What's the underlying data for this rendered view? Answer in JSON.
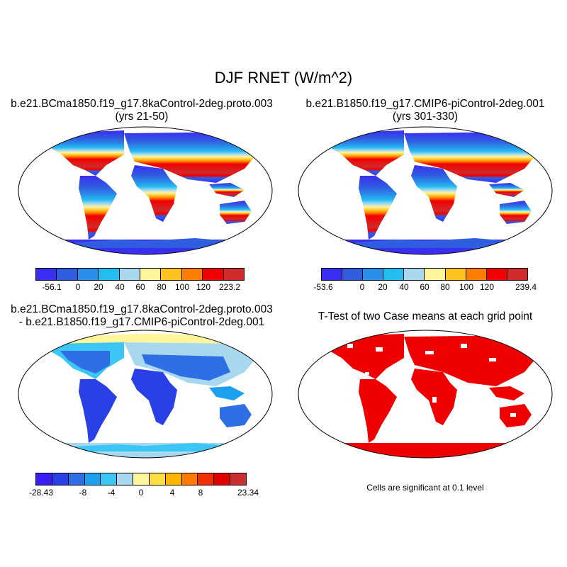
{
  "figure": {
    "title": "DJF RNET (W/m^2)"
  },
  "panels": [
    {
      "title_line1": "b.e21.BCma1850.f19_g17.8kaControl-2deg.proto.003",
      "title_line2": "(yrs 21-50)",
      "colorbar": {
        "labels": [
          "-56.1",
          "0",
          "20",
          "40",
          "60",
          "80",
          "100",
          "120",
          "223.2"
        ],
        "colors": [
          "#3a2ef0",
          "#2f5de0",
          "#2a8fea",
          "#23bdf2",
          "#a7d8f0",
          "#fff59b",
          "#ffc21e",
          "#ff7d00",
          "#f20000",
          "#d02a2a"
        ]
      }
    },
    {
      "title_line1": "b.e21.B1850.f19_g17.CMIP6-piControl-2deg.001",
      "title_line2": "(yrs 301-330)",
      "colorbar": {
        "labels": [
          "-53.6",
          "0",
          "20",
          "40",
          "60",
          "80",
          "100",
          "120",
          "239.4"
        ],
        "colors": [
          "#3a2ef0",
          "#2f5de0",
          "#2a8fea",
          "#23bdf2",
          "#a7d8f0",
          "#fff59b",
          "#ffc21e",
          "#ff7d00",
          "#f20000",
          "#d02a2a"
        ]
      }
    },
    {
      "title_line1": "b.e21.BCma1850.f19_g17.8kaControl-2deg.proto.003",
      "title_line2": "- b.e21.B1850.f19_g17.CMIP6-piControl-2deg.001",
      "colorbar": {
        "labels": [
          "-28.43",
          "-8",
          "-4",
          "0",
          "4",
          "8",
          "23.34"
        ],
        "colors": [
          "#3a1ef5",
          "#2840e6",
          "#2f6fe6",
          "#1ea0f0",
          "#3cc6f5",
          "#a8d8f0",
          "#fff59b",
          "#ffe040",
          "#ffb400",
          "#ff7a00",
          "#f03000",
          "#e00000",
          "#c83030"
        ]
      }
    },
    {
      "title_line1": "T-Test of two Case means at each grid point",
      "note": "Cells are significant at 0.1 level",
      "sig_color": "#ee0000"
    }
  ]
}
